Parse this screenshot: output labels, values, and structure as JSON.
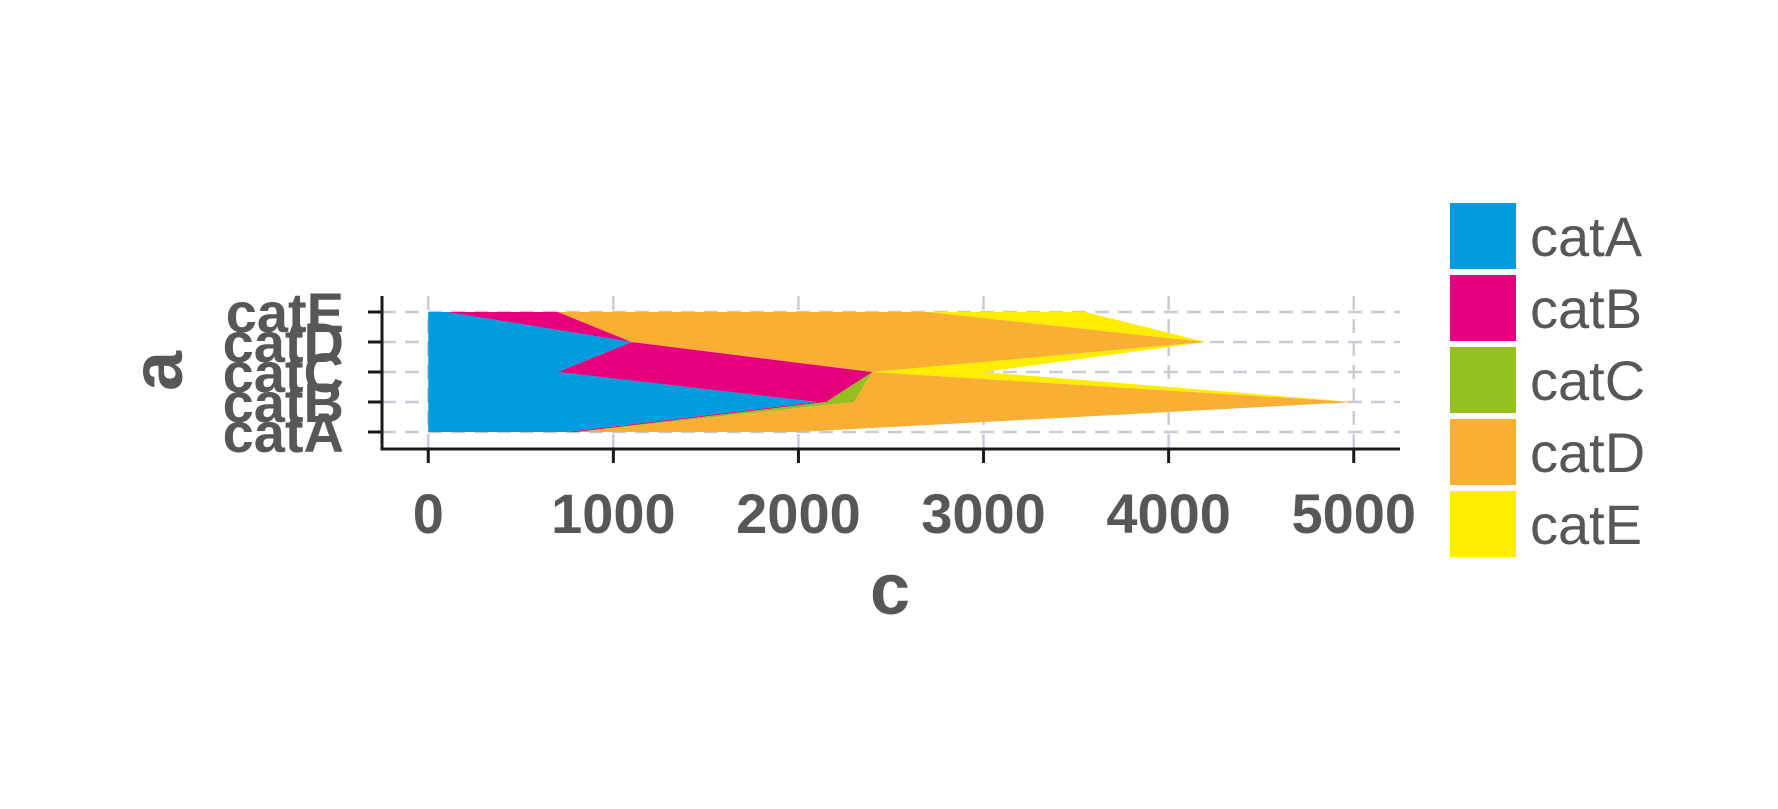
{
  "chart_data": {
    "type": "area",
    "orientation": "horizontal",
    "stacked": true,
    "xlabel": "c",
    "ylabel": "a",
    "xlim": [
      -250,
      5250
    ],
    "x_ticks": [
      0,
      1000,
      2000,
      3000,
      4000,
      5000
    ],
    "categories": [
      "catA",
      "catB",
      "catC",
      "catD",
      "catE"
    ],
    "grid": true,
    "legend_position": "right",
    "series": [
      {
        "name": "catA",
        "color": "#009DDE",
        "values": [
          750,
          2100,
          700,
          1100,
          100
        ]
      },
      {
        "name": "catB",
        "color": "#E6007E",
        "values": [
          50,
          50,
          1700,
          0,
          600
        ]
      },
      {
        "name": "catC",
        "color": "#93BF1F",
        "values": [
          0,
          150,
          0,
          0,
          0
        ]
      },
      {
        "name": "catD",
        "color": "#F8AF34",
        "values": [
          1200,
          2700,
          0,
          3100,
          2000
        ]
      },
      {
        "name": "catE",
        "color": "#FFED00",
        "values": [
          0,
          0,
          600,
          0,
          850
        ]
      }
    ]
  }
}
